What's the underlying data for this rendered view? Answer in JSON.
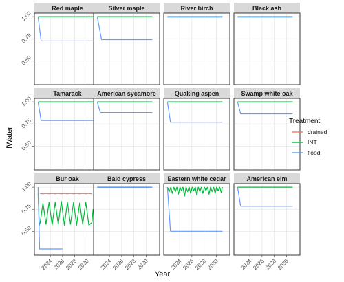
{
  "chart_data": {
    "type": "line",
    "xlabel": "Year",
    "ylabel": "fWater",
    "xlim": [
      2021.4,
      2032.2
    ],
    "ylim": [
      0.23,
      1.04
    ],
    "xticks": [
      2024,
      2026,
      2028,
      2030
    ],
    "yticks": [
      0.5,
      0.75,
      1.0
    ],
    "ytick_labels": [
      "0.50",
      "0.75",
      "1.00"
    ],
    "grid": true,
    "legend": {
      "title": "Treatment",
      "position": "right",
      "items": [
        {
          "name": "drained",
          "color": "#F8766D"
        },
        {
          "name": "INT",
          "color": "#00BA38"
        },
        {
          "name": "flood",
          "color": "#619CFF"
        }
      ]
    },
    "panels": [
      {
        "title": "Red maple",
        "series": [
          {
            "name": "INT",
            "x": [
              2022,
              2031
            ],
            "y": [
              1.0,
              1.0
            ]
          },
          {
            "name": "flood",
            "x": [
              2022,
              2022.5,
              2031
            ],
            "y": [
              1.0,
              0.725,
              0.725
            ]
          }
        ]
      },
      {
        "title": "Silver maple",
        "series": [
          {
            "name": "INT",
            "x": [
              2022,
              2031
            ],
            "y": [
              1.0,
              1.0
            ]
          },
          {
            "name": "flood",
            "x": [
              2022,
              2022.7,
              2031
            ],
            "y": [
              1.0,
              0.74,
              0.74
            ]
          }
        ]
      },
      {
        "title": "River birch",
        "series": [
          {
            "name": "INT",
            "x": [
              2022,
              2031
            ],
            "y": [
              1.0,
              1.0
            ]
          },
          {
            "name": "flood",
            "x": [
              2022,
              2031
            ],
            "y": [
              0.995,
              0.995
            ]
          }
        ]
      },
      {
        "title": "Black ash",
        "series": [
          {
            "name": "INT",
            "x": [
              2022,
              2031
            ],
            "y": [
              1.0,
              1.0
            ]
          },
          {
            "name": "flood",
            "x": [
              2022,
              2031
            ],
            "y": [
              0.995,
              0.995
            ]
          }
        ]
      },
      {
        "title": "Tamarack",
        "series": [
          {
            "name": "INT",
            "x": [
              2022,
              2031
            ],
            "y": [
              1.0,
              1.0
            ]
          },
          {
            "name": "flood",
            "x": [
              2022,
              2022.5,
              2031
            ],
            "y": [
              1.0,
              0.79,
              0.79
            ]
          }
        ]
      },
      {
        "title": "American sycamore",
        "series": [
          {
            "name": "INT",
            "x": [
              2022,
              2031
            ],
            "y": [
              1.0,
              1.0
            ]
          },
          {
            "name": "flood",
            "x": [
              2022,
              2022.5,
              2031
            ],
            "y": [
              1.0,
              0.88,
              0.88
            ]
          }
        ]
      },
      {
        "title": "Quaking aspen",
        "series": [
          {
            "name": "INT",
            "x": [
              2022,
              2031
            ],
            "y": [
              1.0,
              1.0
            ]
          },
          {
            "name": "flood",
            "x": [
              2022,
              2022.5,
              2031
            ],
            "y": [
              1.0,
              0.77,
              0.77
            ]
          }
        ]
      },
      {
        "title": "Swamp white oak",
        "series": [
          {
            "name": "INT",
            "x": [
              2022,
              2031
            ],
            "y": [
              1.0,
              1.0
            ]
          },
          {
            "name": "flood",
            "x": [
              2022,
              2022.5,
              2031
            ],
            "y": [
              1.0,
              0.865,
              0.865
            ]
          }
        ]
      },
      {
        "title": "Bur oak",
        "series": [
          {
            "name": "drained",
            "x": [
              2022.3,
              2022.8,
              2023.3,
              2023.8,
              2024.3,
              2024.8,
              2025.3,
              2025.8,
              2026.3,
              2026.8,
              2027.3,
              2027.8,
              2028.3,
              2028.8,
              2029.3,
              2029.8,
              2030.3,
              2030.8
            ],
            "y": [
              0.93,
              0.925,
              0.93,
              0.925,
              0.93,
              0.925,
              0.93,
              0.925,
              0.93,
              0.925,
              0.93,
              0.925,
              0.93,
              0.925,
              0.93,
              0.925,
              0.93,
              0.925
            ]
          },
          {
            "name": "INT",
            "x": [
              2022,
              2022.2,
              2022.35,
              2022.8,
              2023.3,
              2023.8,
              2024.3,
              2024.8,
              2025.3,
              2025.8,
              2026.3,
              2026.8,
              2027.3,
              2027.8,
              2028.3,
              2028.8,
              2029.3,
              2029.8,
              2030.3,
              2030.8,
              2031
            ],
            "y": [
              0.93,
              0.57,
              0.6,
              0.82,
              0.58,
              0.83,
              0.57,
              0.83,
              0.58,
              0.84,
              0.57,
              0.83,
              0.58,
              0.83,
              0.57,
              0.82,
              0.58,
              0.83,
              0.57,
              0.6,
              0.75
            ]
          },
          {
            "name": "flood",
            "x": [
              2022,
              2022.25,
              2026
            ],
            "y": [
              1.0,
              0.3,
              0.3
            ]
          }
        ]
      },
      {
        "title": "Bald cypress",
        "series": [
          {
            "name": "INT",
            "x": [
              2022,
              2031
            ],
            "y": [
              1.0,
              1.0
            ]
          },
          {
            "name": "flood",
            "x": [
              2022,
              2031
            ],
            "y": [
              0.997,
              0.997
            ]
          }
        ]
      },
      {
        "title": "Eastern white cedar",
        "series": [
          {
            "name": "INT",
            "x": [
              2022,
              2022.3,
              2022.55,
              2022.8,
              2023.05,
              2023.3,
              2023.55,
              2023.8,
              2024.05,
              2024.3,
              2024.55,
              2024.8,
              2025.05,
              2025.3,
              2025.55,
              2025.8,
              2026.05,
              2026.3,
              2026.55,
              2026.8,
              2027.05,
              2027.3,
              2027.55,
              2027.8,
              2028.05,
              2028.3,
              2028.55,
              2028.8,
              2029.05,
              2029.3,
              2029.55,
              2029.8,
              2030.05,
              2030.3,
              2030.55,
              2030.8,
              2031
            ],
            "y": [
              1.0,
              0.95,
              1.0,
              0.93,
              1.0,
              0.95,
              1.0,
              0.92,
              1.0,
              0.96,
              1.0,
              0.9,
              1.0,
              0.95,
              1.0,
              0.93,
              1.0,
              0.96,
              1.0,
              0.91,
              1.0,
              0.95,
              1.0,
              0.93,
              1.0,
              0.96,
              1.0,
              0.92,
              1.0,
              0.95,
              1.0,
              0.93,
              1.0,
              0.96,
              1.0,
              0.94,
              1.0
            ]
          },
          {
            "name": "flood",
            "x": [
              2022,
              2022.5,
              2031
            ],
            "y": [
              1.0,
              0.5,
              0.5
            ]
          }
        ]
      },
      {
        "title": "American elm",
        "series": [
          {
            "name": "INT",
            "x": [
              2022,
              2031
            ],
            "y": [
              1.0,
              1.0
            ]
          },
          {
            "name": "flood",
            "x": [
              2022,
              2022.5,
              2031
            ],
            "y": [
              1.0,
              0.785,
              0.785
            ]
          }
        ]
      }
    ]
  }
}
